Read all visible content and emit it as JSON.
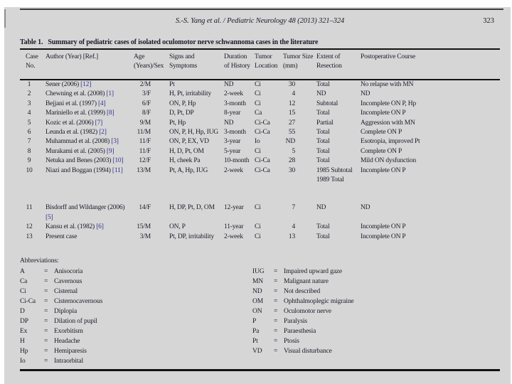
{
  "page": {
    "running_head": "S.-S. Yang et al. / Pediatric Neurology 48 (2013) 321–324",
    "page_number": "323"
  },
  "table": {
    "title_label": "Table 1.",
    "title_text": "Summary of pediatric cases of isolated oculomotor nerve schwannoma cases in the literature",
    "headers": [
      "Case No.",
      "Author (Year) [Ref.]",
      "Age (Years)/Sex",
      "Signs and Symptoms",
      "Duration of History",
      "Tumor Location",
      "Tumor Size (mm)",
      "Extent of Resection",
      "Postoperative Course"
    ],
    "rows": [
      {
        "no": "1",
        "author": "Sener (2006)",
        "ref": "[12]",
        "age": "2/M",
        "signs": "Pt",
        "duration": "ND",
        "location": "Ci",
        "size": "30",
        "resection": "Total",
        "course": "No relapse with MN"
      },
      {
        "no": "2",
        "author": "Chewning et al. (2008)",
        "ref": "[1]",
        "age": "3/F",
        "signs": "H, Pt, irritability",
        "duration": "2-week",
        "location": "Ci",
        "size": "4",
        "resection": "ND",
        "course": "ND"
      },
      {
        "no": "3",
        "author": "Bejjani et al. (1997)",
        "ref": "[4]",
        "age": "6/F",
        "signs": "ON, P, Hp",
        "duration": "3-month",
        "location": "Ci",
        "size": "12",
        "resection": "Subtotal",
        "course": "Incomplete ON P, Hp"
      },
      {
        "no": "4",
        "author": "Mariniello et al. (1999)",
        "ref": "[8]",
        "age": "8/F",
        "signs": "D, Pt, DP",
        "duration": "8-year",
        "location": "Ca",
        "size": "15",
        "resection": "Total",
        "course": "Incomplete ON P"
      },
      {
        "no": "5",
        "author": "Kozic et al. (2006)",
        "ref": "[7]",
        "age": "9/M",
        "signs": "Pt, Hp",
        "duration": "ND",
        "location": "Ci-Ca",
        "size": "27",
        "resection": "Partial",
        "course": "Aggression with MN"
      },
      {
        "no": "6",
        "author": "Leunda et al. (1982)",
        "ref": "[2]",
        "age": "11/M",
        "signs": "ON, P, H, Hp, IUG",
        "duration": "3-month",
        "location": "Ci-Ca",
        "size": "55",
        "resection": "Total",
        "course": "Complete ON P"
      },
      {
        "no": "7",
        "author": "Muhammad et al. (2008)",
        "ref": "[3]",
        "age": "11/F",
        "signs": "ON, P, EX, VD",
        "duration": "3-year",
        "location": "Io",
        "size": "ND",
        "resection": "Total",
        "course": "Esotropia, improved Pt"
      },
      {
        "no": "8",
        "author": "Murakami et al. (2005)",
        "ref": "[9]",
        "age": "11/F",
        "signs": "H, D, Pt, OM",
        "duration": "5-year",
        "location": "Ci",
        "size": "5",
        "resection": "Total",
        "course": "Complete ON P"
      },
      {
        "no": "9",
        "author": "Netuka and Benes (2003)",
        "ref": "[10]",
        "age": "12/F",
        "signs": "H, cheek Pa",
        "duration": "10-month",
        "location": "Ci-Ca",
        "size": "28",
        "resection": "Total",
        "course": "Mild ON dysfunction"
      },
      {
        "no": "10",
        "author": "Niazi and Boggan (1994)",
        "ref": "[11]",
        "age": "13/M",
        "signs": "Pt, A, Hp, IUG",
        "duration": "2-week",
        "location": "Ci-Ca",
        "size": "30",
        "resection": "1985 Subtotal 1989 Total",
        "course": "Incomplete ON P"
      },
      {
        "no": "11",
        "author": "Bisdorff and Wildanger (2006)",
        "ref": "[5]",
        "age": "14/F",
        "signs": "H, DP, Pt, D, OM",
        "duration": "12-year",
        "location": "Ci",
        "size": "7",
        "resection": "ND",
        "course": "ND",
        "gap": true
      },
      {
        "no": "12",
        "author": "Kansu et al. (1982)",
        "ref": "[6]",
        "age": "15/M",
        "signs": "ON, P",
        "duration": "11-year",
        "location": "Ci",
        "size": "4",
        "resection": "Total",
        "course": "Incomplete ON P"
      },
      {
        "no": "13",
        "author": "Present case",
        "ref": "",
        "age": "3/M",
        "signs": "Pt, DP, irritability",
        "duration": "2-week",
        "location": "Ci",
        "size": "13",
        "resection": "Total",
        "course": "Incomplete ON P"
      }
    ]
  },
  "abbreviations": {
    "label": "Abbreviations:",
    "eq_symbol": "=",
    "left": [
      {
        "abbr": "A",
        "meaning": "Anisocoria"
      },
      {
        "abbr": "Ca",
        "meaning": "Cavernous"
      },
      {
        "abbr": "Ci",
        "meaning": "Cisternal"
      },
      {
        "abbr": "Ci-Ca",
        "meaning": "Cisternocavernous"
      },
      {
        "abbr": "D",
        "meaning": "Diplopia"
      },
      {
        "abbr": "DP",
        "meaning": "Dilation of pupil"
      },
      {
        "abbr": "Ex",
        "meaning": "Exorbitism"
      },
      {
        "abbr": "H",
        "meaning": "Headache"
      },
      {
        "abbr": "Hp",
        "meaning": "Hemiparesis"
      },
      {
        "abbr": "Io",
        "meaning": "Intraorbital"
      }
    ],
    "right": [
      {
        "abbr": "IUG",
        "meaning": "Impaired upward gaze"
      },
      {
        "abbr": "MN",
        "meaning": "Malignant nature"
      },
      {
        "abbr": "ND",
        "meaning": "Not described"
      },
      {
        "abbr": "OM",
        "meaning": "Ophthalmoplegic migraine"
      },
      {
        "abbr": "ON",
        "meaning": "Oculomotor nerve"
      },
      {
        "abbr": "P",
        "meaning": "Paralysis"
      },
      {
        "abbr": "Pa",
        "meaning": "Paraesthesia"
      },
      {
        "abbr": "Pt",
        "meaning": "Ptosis"
      },
      {
        "abbr": "VD",
        "meaning": "Visual disturbance"
      }
    ]
  },
  "colors": {
    "page_background": "#d6d6d6",
    "text": "#1a1a28",
    "citation_ref": "#32328f",
    "rule": "#131313"
  }
}
